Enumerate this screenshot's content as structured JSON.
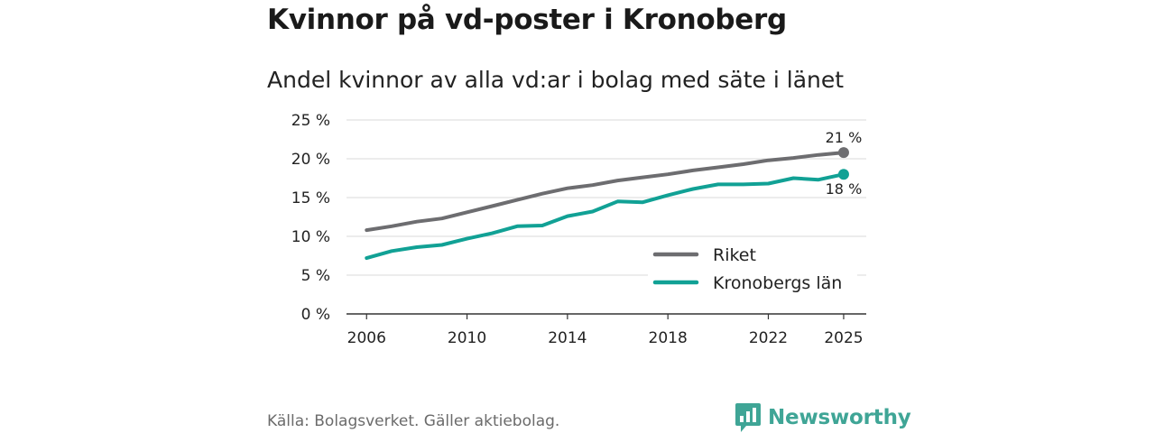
{
  "title": "Kvinnor på vd-poster i Kronoberg",
  "subtitle": "Andel kvinnor av alla vd:ar i bolag med säte i länet",
  "footer": {
    "source": "Källa: Bolagsverket. Gäller aktiebolag.",
    "brand": "Newsworthy"
  },
  "colors": {
    "riket": "#6d6d70",
    "kronoberg": "#11a195",
    "grid": "#d9d9d9",
    "axis": "#333333"
  },
  "chart_data": {
    "type": "line",
    "title": "Kvinnor på vd-poster i Kronoberg",
    "subtitle": "Andel kvinnor av alla vd:ar i bolag med säte i länet",
    "xlabel": "",
    "ylabel": "",
    "x": [
      2006,
      2007,
      2008,
      2009,
      2010,
      2011,
      2012,
      2013,
      2014,
      2015,
      2016,
      2017,
      2018,
      2019,
      2020,
      2021,
      2022,
      2023,
      2024,
      2025
    ],
    "xlim": [
      2005.2,
      2025.9
    ],
    "x_ticks": [
      2006,
      2010,
      2014,
      2018,
      2022,
      2025
    ],
    "ylim": [
      0,
      25
    ],
    "y_ticks": [
      0,
      5,
      10,
      15,
      20,
      25
    ],
    "y_tick_labels": [
      "0 %",
      "5 %",
      "10 %",
      "15 %",
      "20 %",
      "25 %"
    ],
    "grid": true,
    "legend_position": "bottom-right",
    "series": [
      {
        "name": "Riket",
        "color_key": "riket",
        "values": [
          10.8,
          11.3,
          11.9,
          12.3,
          13.1,
          13.9,
          14.7,
          15.5,
          16.2,
          16.6,
          17.2,
          17.6,
          18.0,
          18.5,
          18.9,
          19.3,
          19.8,
          20.1,
          20.5,
          20.8
        ],
        "end_label": "21 %"
      },
      {
        "name": "Kronobergs län",
        "color_key": "kronoberg",
        "values": [
          7.2,
          8.1,
          8.6,
          8.9,
          9.7,
          10.4,
          11.3,
          11.4,
          12.6,
          13.2,
          14.5,
          14.4,
          15.3,
          16.1,
          16.7,
          16.7,
          16.8,
          17.5,
          17.3,
          18.0
        ],
        "end_label": "18 %"
      }
    ]
  }
}
